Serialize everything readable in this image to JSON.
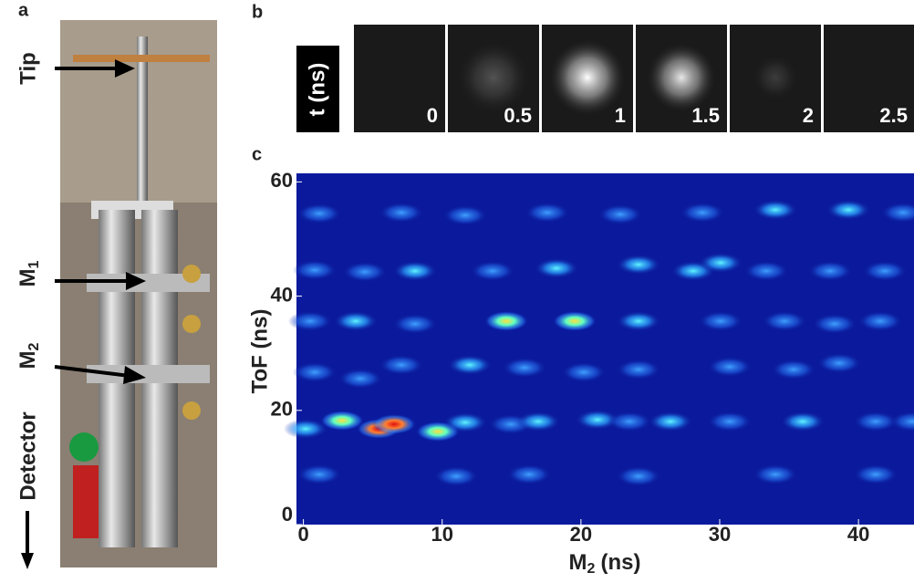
{
  "panel_a": {
    "letter": "a",
    "labels": [
      {
        "text": "Tip"
      },
      {
        "text": "M",
        "sub": "1"
      },
      {
        "text": "M",
        "sub": "2"
      },
      {
        "text": "Detector"
      }
    ]
  },
  "panel_b": {
    "letter": "b",
    "axis_label": "t (ns)",
    "frames": [
      0,
      0.5,
      1,
      1.5,
      2,
      2.5
    ]
  },
  "panel_c": {
    "letter": "c",
    "x_label": {
      "text": "M",
      "sub": "2",
      "unit": "(ns)"
    },
    "y_label": "ToF (ns)",
    "xlim": [
      -0.5,
      44
    ],
    "ylim": [
      0,
      61.5
    ],
    "xticks": [
      0,
      10,
      20,
      30,
      40
    ],
    "yticks": [
      0,
      20,
      40,
      60
    ]
  }
}
